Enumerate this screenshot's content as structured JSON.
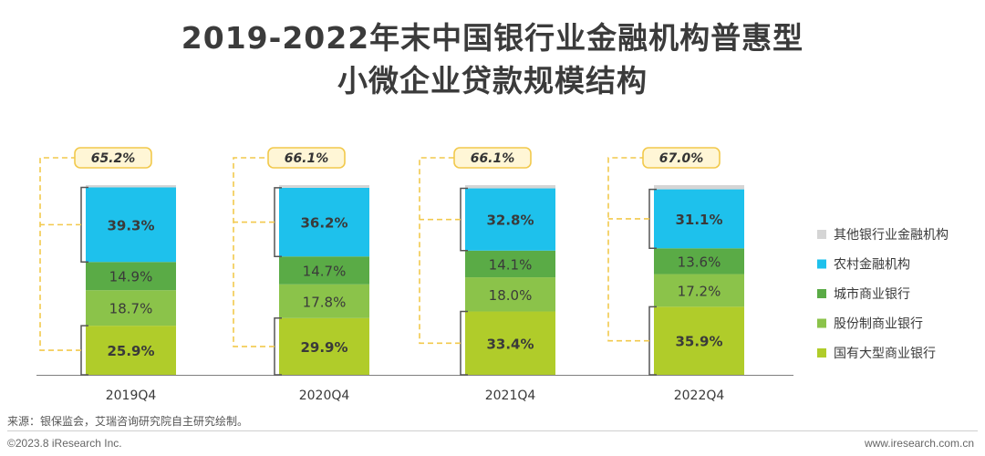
{
  "title": {
    "line1": "2019-2022年末中国银行业金融机构普惠型",
    "line2": "小微企业贷款规模结构"
  },
  "chart_data": {
    "type": "bar",
    "stacked": true,
    "unit": "%",
    "categories": [
      "2019Q4",
      "2020Q4",
      "2021Q4",
      "2022Q4"
    ],
    "ylim": [
      0,
      100
    ],
    "series": [
      {
        "name": "国有大型商业银行",
        "color": "#b0cc2a",
        "values": [
          25.9,
          29.9,
          33.4,
          35.9
        ]
      },
      {
        "name": "股份制商业银行",
        "color": "#8bc34a",
        "values": [
          18.7,
          17.8,
          18.0,
          17.2
        ]
      },
      {
        "name": "城市商业银行",
        "color": "#5aab46",
        "values": [
          14.9,
          14.7,
          14.1,
          13.6
        ]
      },
      {
        "name": "农村金融机构",
        "color": "#1ec1ec",
        "values": [
          39.3,
          36.2,
          32.8,
          31.1
        ]
      },
      {
        "name": "其他银行业金融机构",
        "color": "#d5d5d5",
        "values": [
          1.2,
          1.4,
          1.7,
          2.2
        ]
      }
    ],
    "data_labels": [
      [
        "25.9%",
        "29.9%",
        "33.4%",
        "35.9%"
      ],
      [
        "18.7%",
        "17.8%",
        "18.0%",
        "17.2%"
      ],
      [
        "14.9%",
        "14.7%",
        "14.1%",
        "13.6%"
      ],
      [
        "39.3%",
        "36.2%",
        "32.8%",
        "31.1%"
      ]
    ],
    "combined_share_labels": [
      "65.2%",
      "66.1%",
      "66.1%",
      "67.0%"
    ],
    "legend": {
      "placement": "right",
      "order": [
        "其他银行业金融机构",
        "农村金融机构",
        "城市商业银行",
        "股份制商业银行",
        "国有大型商业银行"
      ]
    },
    "grid": false
  },
  "footer": {
    "source": "来源：银保监会，艾瑞咨询研究院自主研究绘制。",
    "copyright": "©2023.8 iResearch Inc.",
    "website": "www.iresearch.com.cn"
  }
}
